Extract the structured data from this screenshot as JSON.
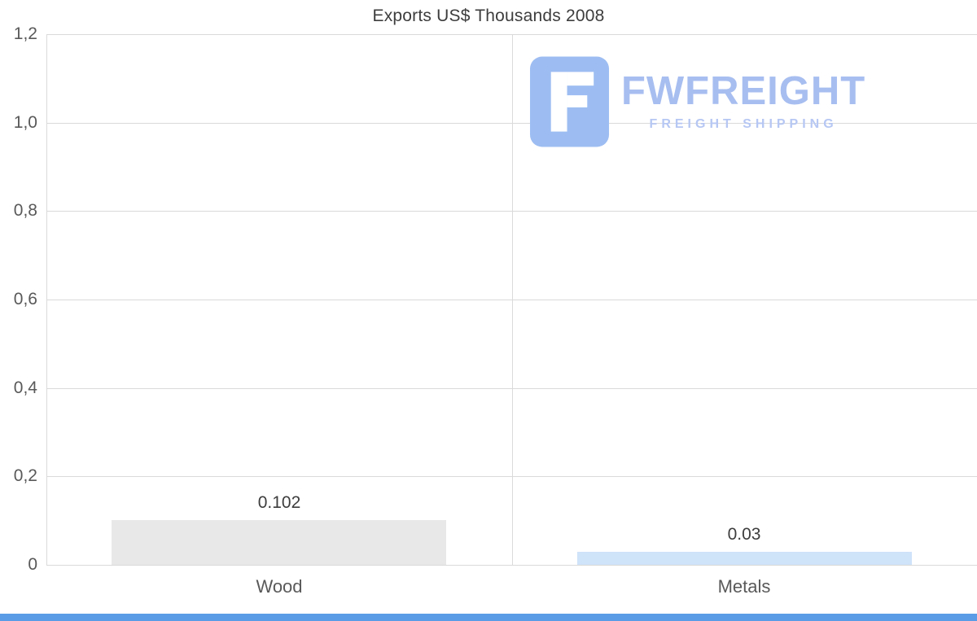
{
  "chart_data": {
    "type": "bar",
    "title": "Exports US$ Thousands 2008",
    "categories": [
      "Wood",
      "Metals"
    ],
    "values": [
      0.102,
      0.03
    ],
    "value_labels": [
      "0.102",
      "0.03"
    ],
    "bar_colors": [
      "#e8e8e8",
      "#cfe3f9"
    ],
    "xlabel": "",
    "ylabel": "",
    "ylim": [
      0,
      1.2
    ],
    "y_ticks": [
      "1,2",
      "1,0",
      "0,8",
      "0,6",
      "0,4",
      "0,2",
      "0"
    ],
    "y_tick_values": [
      1.2,
      1.0,
      0.8,
      0.6,
      0.4,
      0.2,
      0
    ],
    "grid": true,
    "legend": false
  },
  "watermark": {
    "brand": "FWFREIGHT",
    "tagline": "FREIGHT SHIPPING",
    "brand_color": "#a7bef0",
    "tagline_color": "#b6c7f3",
    "icon_color": "#9dbdf2"
  },
  "colors": {
    "grid": "#dadada",
    "axis_text": "#595959",
    "title_text": "#3d3d3d",
    "bottom_bar": "#5b9ce6",
    "background": "#ffffff"
  }
}
